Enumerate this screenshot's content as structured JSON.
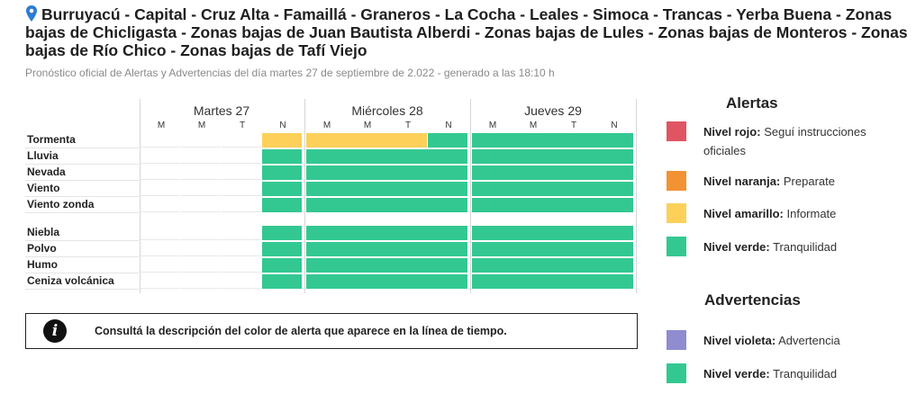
{
  "header": {
    "title": "Burruyacú - Capital - Cruz Alta - Famaillá - Graneros - La Cocha - Leales - Simoca - Trancas - Yerba Buena - Zonas bajas de Chicligasta - Zonas bajas de Juan Bautista Alberdi - Zonas bajas de Lules - Zonas bajas de Monteros - Zonas bajas de Río Chico - Zonas bajas de Tafí Viejo",
    "subtitle": "Pronóstico oficial de Alertas y Advertencias del día martes 27 de septiembre de 2.022 - generado a las 18:10 h"
  },
  "colors": {
    "green": "#33c892",
    "yellow": "#fdd05a",
    "red": "#e05563",
    "orange": "#f39233",
    "violet": "#8f8cd0",
    "grid_line": "#d6d6d6"
  },
  "forecast": {
    "days": [
      {
        "label": "Martes 27",
        "periods": [
          "M",
          "M",
          "T",
          "N"
        ]
      },
      {
        "label": "Miércoles 28",
        "periods": [
          "M",
          "M",
          "T",
          "N"
        ]
      },
      {
        "label": "Jueves 29",
        "periods": [
          "M",
          "M",
          "T",
          "N"
        ]
      }
    ],
    "rows": [
      {
        "label": "Tormenta",
        "levels": [
          "none",
          "none",
          "none",
          "yellow",
          "yellow",
          "yellow",
          "yellow",
          "green",
          "green",
          "green",
          "green",
          "green"
        ]
      },
      {
        "label": "Lluvia",
        "levels": [
          "none",
          "none",
          "none",
          "green",
          "green",
          "green",
          "green",
          "green",
          "green",
          "green",
          "green",
          "green"
        ]
      },
      {
        "label": "Nevada",
        "levels": [
          "none",
          "none",
          "none",
          "green",
          "green",
          "green",
          "green",
          "green",
          "green",
          "green",
          "green",
          "green"
        ]
      },
      {
        "label": "Viento",
        "levels": [
          "none",
          "none",
          "none",
          "green",
          "green",
          "green",
          "green",
          "green",
          "green",
          "green",
          "green",
          "green"
        ]
      },
      {
        "label": "Viento zonda",
        "levels": [
          "none",
          "none",
          "none",
          "green",
          "green",
          "green",
          "green",
          "green",
          "green",
          "green",
          "green",
          "green"
        ]
      },
      {
        "label": "Niebla",
        "levels": [
          "none",
          "none",
          "none",
          "green",
          "green",
          "green",
          "green",
          "green",
          "green",
          "green",
          "green",
          "green"
        ]
      },
      {
        "label": "Polvo",
        "levels": [
          "none",
          "none",
          "none",
          "green",
          "green",
          "green",
          "green",
          "green",
          "green",
          "green",
          "green",
          "green"
        ]
      },
      {
        "label": "Humo",
        "levels": [
          "none",
          "none",
          "none",
          "green",
          "green",
          "green",
          "green",
          "green",
          "green",
          "green",
          "green",
          "green"
        ]
      },
      {
        "label": "Ceniza volcánica",
        "levels": [
          "none",
          "none",
          "none",
          "green",
          "green",
          "green",
          "green",
          "green",
          "green",
          "green",
          "green",
          "green"
        ]
      }
    ]
  },
  "info_box": {
    "icon": "info-icon",
    "text": "Consultá la descripción del color de alerta que aparece en la línea de tiempo."
  },
  "legend": {
    "alertas_title": "Alertas",
    "alertas": [
      {
        "level": "Nivel rojo:",
        "desc": "Seguí instrucciones oficiales",
        "color": "red"
      },
      {
        "level": "Nivel naranja:",
        "desc": "Preparate",
        "color": "orange"
      },
      {
        "level": "Nivel amarillo:",
        "desc": "Informate",
        "color": "yellow"
      },
      {
        "level": "Nivel verde:",
        "desc": "Tranquilidad",
        "color": "green"
      }
    ],
    "advertencias_title": "Advertencias",
    "advertencias": [
      {
        "level": "Nivel violeta:",
        "desc": "Advertencia",
        "color": "violet"
      },
      {
        "level": "Nivel verde:",
        "desc": "Tranquilidad",
        "color": "green"
      }
    ]
  }
}
